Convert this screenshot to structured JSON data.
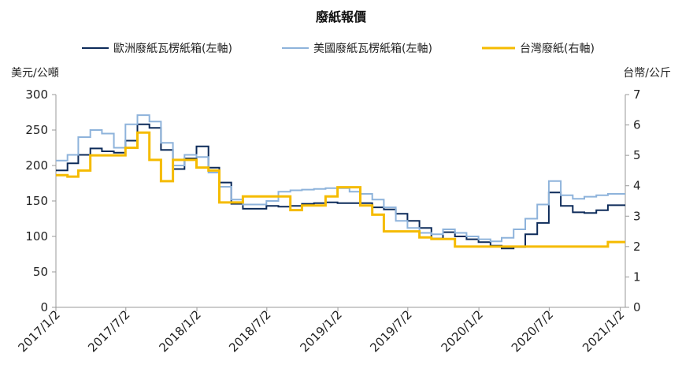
{
  "chart_data": {
    "type": "line",
    "title": "廢紙報價",
    "left_unit": "美元/公噸",
    "right_unit": "台幣/公斤",
    "ylim_left": [
      0,
      300
    ],
    "yticks_left": [
      "0",
      "50",
      "100",
      "150",
      "200",
      "250",
      "300"
    ],
    "ylim_right": [
      0,
      7
    ],
    "yticks_right": [
      "0",
      "1",
      "2",
      "3",
      "4",
      "5",
      "6",
      "7"
    ],
    "xlim": [
      "2017-01-02",
      "2021-01-15"
    ],
    "xticks": [
      "2017/1/2",
      "2017/7/2",
      "2018/1/2",
      "2018/7/2",
      "2019/1/2",
      "2019/7/2",
      "2020/1/2",
      "2020/7/2",
      "2021/1/2"
    ],
    "xtick_dates": [
      "2017-01-02",
      "2017-07-02",
      "2018-01-02",
      "2018-07-02",
      "2019-01-02",
      "2019-07-02",
      "2020-01-02",
      "2020-07-02",
      "2021-01-02"
    ],
    "grid": false,
    "legend_position": "top",
    "series": [
      {
        "name": "歐洲廢紙瓦楞紙箱(左軸)",
        "axis": "left",
        "color": "#0d2b5a",
        "step": true,
        "x": [
          "2017-01-02",
          "2017-02-01",
          "2017-03-01",
          "2017-04-01",
          "2017-05-01",
          "2017-06-01",
          "2017-07-01",
          "2017-08-01",
          "2017-09-01",
          "2017-10-01",
          "2017-11-01",
          "2017-12-01",
          "2018-01-01",
          "2018-02-01",
          "2018-03-01",
          "2018-04-01",
          "2018-05-01",
          "2018-06-01",
          "2018-07-01",
          "2018-08-01",
          "2018-09-01",
          "2018-10-01",
          "2018-11-01",
          "2018-12-01",
          "2019-01-01",
          "2019-02-01",
          "2019-03-01",
          "2019-04-01",
          "2019-05-01",
          "2019-06-01",
          "2019-07-01",
          "2019-08-01",
          "2019-09-01",
          "2019-10-01",
          "2019-11-01",
          "2019-12-01",
          "2020-01-01",
          "2020-02-01",
          "2020-03-01",
          "2020-04-01",
          "2020-05-01",
          "2020-06-01",
          "2020-07-01",
          "2020-08-01",
          "2020-09-01",
          "2020-10-01",
          "2020-11-01",
          "2020-12-01",
          "2021-01-15"
        ],
        "values": [
          193,
          203,
          215,
          224,
          220,
          218,
          235,
          258,
          253,
          222,
          195,
          210,
          227,
          197,
          176,
          146,
          139,
          139,
          143,
          142,
          143,
          146,
          147,
          148,
          147,
          147,
          147,
          141,
          138,
          132,
          122,
          112,
          97,
          106,
          100,
          96,
          92,
          87,
          83,
          85,
          103,
          119,
          162,
          143,
          134,
          133,
          137,
          144,
          144
        ]
      },
      {
        "name": "美國廢紙瓦楞紙箱(左軸)",
        "axis": "left",
        "color": "#8eb3db",
        "step": true,
        "x": [
          "2017-01-02",
          "2017-02-01",
          "2017-03-01",
          "2017-04-01",
          "2017-05-01",
          "2017-06-01",
          "2017-07-01",
          "2017-08-01",
          "2017-09-01",
          "2017-10-01",
          "2017-11-01",
          "2017-12-01",
          "2018-01-01",
          "2018-02-01",
          "2018-03-01",
          "2018-04-01",
          "2018-05-01",
          "2018-06-01",
          "2018-07-01",
          "2018-08-01",
          "2018-09-01",
          "2018-10-01",
          "2018-11-01",
          "2018-12-01",
          "2019-01-01",
          "2019-02-01",
          "2019-03-01",
          "2019-04-01",
          "2019-05-01",
          "2019-06-01",
          "2019-07-01",
          "2019-08-01",
          "2019-09-01",
          "2019-10-01",
          "2019-11-01",
          "2019-12-01",
          "2020-01-01",
          "2020-02-01",
          "2020-03-01",
          "2020-04-01",
          "2020-05-01",
          "2020-06-01",
          "2020-07-01",
          "2020-08-01",
          "2020-09-01",
          "2020-10-01",
          "2020-11-01",
          "2020-12-01",
          "2021-01-15"
        ],
        "values": [
          207,
          215,
          240,
          250,
          245,
          225,
          258,
          271,
          262,
          232,
          200,
          215,
          212,
          190,
          170,
          152,
          145,
          145,
          150,
          163,
          165,
          166,
          167,
          168,
          168,
          163,
          160,
          152,
          141,
          122,
          112,
          105,
          103,
          110,
          105,
          100,
          96,
          93,
          98,
          110,
          125,
          145,
          178,
          158,
          153,
          156,
          158,
          160,
          160
        ]
      },
      {
        "name": "台灣廢紙(右軸)",
        "axis": "right",
        "color": "#f5bb00",
        "step": true,
        "x": [
          "2017-01-02",
          "2017-02-01",
          "2017-03-01",
          "2017-04-01",
          "2017-05-01",
          "2017-06-01",
          "2017-07-01",
          "2017-08-01",
          "2017-09-01",
          "2017-10-01",
          "2017-11-01",
          "2017-12-01",
          "2018-01-01",
          "2018-02-01",
          "2018-03-01",
          "2018-04-01",
          "2018-05-01",
          "2018-06-01",
          "2018-07-01",
          "2018-08-01",
          "2018-09-01",
          "2018-10-01",
          "2018-11-01",
          "2018-12-01",
          "2019-01-01",
          "2019-02-01",
          "2019-03-01",
          "2019-04-01",
          "2019-05-01",
          "2019-06-01",
          "2019-07-01",
          "2019-08-01",
          "2019-09-01",
          "2019-10-01",
          "2019-11-01",
          "2019-12-01",
          "2020-01-01",
          "2020-02-01",
          "2020-03-01",
          "2020-04-01",
          "2020-05-01",
          "2020-06-01",
          "2020-07-01",
          "2020-08-01",
          "2020-09-01",
          "2020-10-01",
          "2020-11-01",
          "2020-12-01",
          "2021-01-15"
        ],
        "values": [
          4.35,
          4.3,
          4.5,
          5.0,
          5.0,
          5.0,
          5.25,
          5.75,
          4.85,
          4.15,
          4.85,
          4.85,
          4.6,
          4.5,
          3.45,
          3.45,
          3.65,
          3.65,
          3.65,
          3.65,
          3.2,
          3.35,
          3.35,
          3.65,
          3.95,
          3.95,
          3.35,
          3.05,
          2.5,
          2.5,
          2.5,
          2.3,
          2.25,
          2.25,
          2.0,
          2.0,
          2.0,
          2.0,
          2.0,
          2.0,
          2.0,
          2.0,
          2.0,
          2.0,
          2.0,
          2.0,
          2.0,
          2.15,
          2.15
        ]
      }
    ]
  }
}
